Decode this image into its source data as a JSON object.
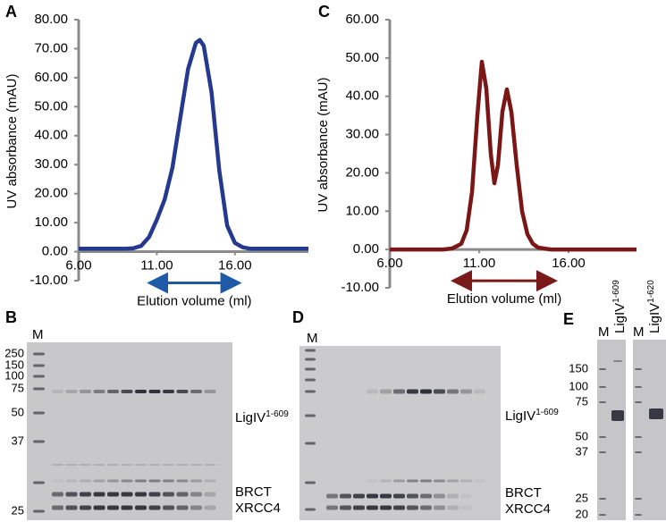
{
  "chart_data": [
    {
      "type": "line",
      "panel_label": "A",
      "ylabel": "UV absorbance (mAU)",
      "xlabel": "Elution volume (ml)",
      "xlim": [
        6,
        20.7
      ],
      "ylim": [
        -10,
        80
      ],
      "xticks": [
        {
          "value": 6,
          "label": "6.00"
        },
        {
          "value": 11,
          "label": "11.00"
        },
        {
          "value": 16,
          "label": "16.00"
        }
      ],
      "yticks": [
        {
          "value": -10,
          "label": "-10.00"
        },
        {
          "value": 0,
          "label": "0.00"
        },
        {
          "value": 10,
          "label": "10.00"
        },
        {
          "value": 20,
          "label": "20.00"
        },
        {
          "value": 30,
          "label": "30.00"
        },
        {
          "value": 40,
          "label": "40.00"
        },
        {
          "value": 50,
          "label": "50.00"
        },
        {
          "value": 60,
          "label": "60.00"
        },
        {
          "value": 70,
          "label": "70.00"
        },
        {
          "value": 80,
          "label": "80.00"
        }
      ],
      "series": [
        {
          "color": "#253a8e",
          "x": [
            6,
            7,
            8,
            9,
            9.5,
            10,
            10.5,
            11,
            11.5,
            12,
            12.5,
            13,
            13.5,
            13.75,
            14,
            14.5,
            15,
            15.5,
            16,
            16.5,
            17,
            18,
            19,
            20.7
          ],
          "values": [
            1,
            1,
            1,
            1,
            1.2,
            2,
            5,
            11,
            18,
            29,
            46,
            63,
            72,
            73,
            71,
            55,
            28,
            9,
            3,
            1.5,
            1,
            1,
            1,
            1
          ]
        }
      ],
      "range_arrow": {
        "color": "#1e5aa8",
        "from": 10.7,
        "to": 16.1
      }
    },
    {
      "type": "line",
      "panel_label": "C",
      "ylabel": "UV absorbance (mAU)",
      "xlabel": "Elution volume (ml)",
      "xlim": [
        6,
        19.8
      ],
      "ylim": [
        -10,
        60
      ],
      "xticks": [
        {
          "value": 6,
          "label": "6.00"
        },
        {
          "value": 11,
          "label": "11.00"
        },
        {
          "value": 16,
          "label": "16.00"
        }
      ],
      "yticks": [
        {
          "value": -10,
          "label": "-10.00"
        },
        {
          "value": 0,
          "label": "0.00"
        },
        {
          "value": 10,
          "label": "10.00"
        },
        {
          "value": 20,
          "label": "20.00"
        },
        {
          "value": 30,
          "label": "30.00"
        },
        {
          "value": 40,
          "label": "40.00"
        },
        {
          "value": 50,
          "label": "50.00"
        },
        {
          "value": 60,
          "label": "60.00"
        }
      ],
      "series": [
        {
          "color": "#7a1616",
          "x": [
            6,
            7,
            8,
            9,
            9.5,
            10,
            10.3,
            10.6,
            10.9,
            11.15,
            11.4,
            11.65,
            11.85,
            12.05,
            12.3,
            12.55,
            12.8,
            13.1,
            13.4,
            13.7,
            14,
            14.3,
            15,
            16,
            17,
            18,
            19,
            19.8
          ],
          "values": [
            0,
            0,
            0,
            0,
            0.3,
            1.5,
            5,
            15,
            35,
            49,
            42,
            25,
            17.3,
            22,
            36,
            41.8,
            36,
            22,
            10,
            4,
            1.5,
            0.5,
            0,
            0,
            0,
            0,
            0,
            0
          ]
        }
      ],
      "range_arrow": {
        "color": "#7a1a1a",
        "from": 9.7,
        "to": 15.1
      }
    }
  ],
  "gels": [
    {
      "label": "B",
      "marker_lane": "M",
      "markers": [
        "250",
        "150",
        "100",
        "75",
        "50",
        "37",
        "25"
      ],
      "bands": [
        {
          "text": "LigIV",
          "sup": "1-609"
        },
        {
          "text": "BRCT"
        },
        {
          "text": "XRCC4"
        }
      ]
    },
    {
      "label": "D",
      "marker_lane": "M",
      "bands": [
        {
          "text": "LigIV",
          "sup": "1-609"
        },
        {
          "text": "BRCT"
        },
        {
          "text": "XRCC4"
        }
      ]
    },
    {
      "label": "E",
      "markers": [
        "150",
        "100",
        "75",
        "50",
        "37",
        "25",
        "20"
      ],
      "lanes": [
        {
          "marker": "M",
          "title": "LigIV",
          "sup": "1-609"
        },
        {
          "marker": "M",
          "title": "LigIV",
          "sup": "1-620"
        }
      ]
    }
  ]
}
